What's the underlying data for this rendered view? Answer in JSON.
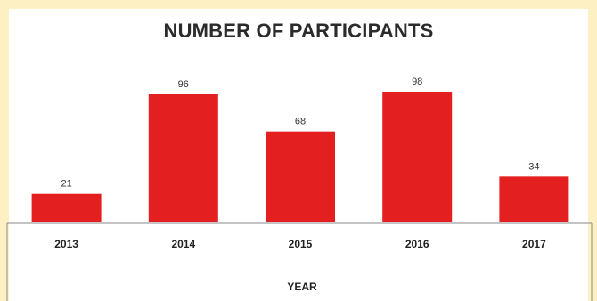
{
  "chart_data": {
    "type": "bar",
    "title": "NUMBER OF PARTICIPANTS",
    "xlabel": "YEAR",
    "ylabel": "",
    "categories": [
      "2013",
      "2014",
      "2015",
      "2016",
      "2017"
    ],
    "values": [
      21,
      96,
      68,
      98,
      34
    ],
    "ylim": [
      0,
      100
    ],
    "grid": false,
    "legend": "none",
    "bar_color": "#e3201f"
  }
}
